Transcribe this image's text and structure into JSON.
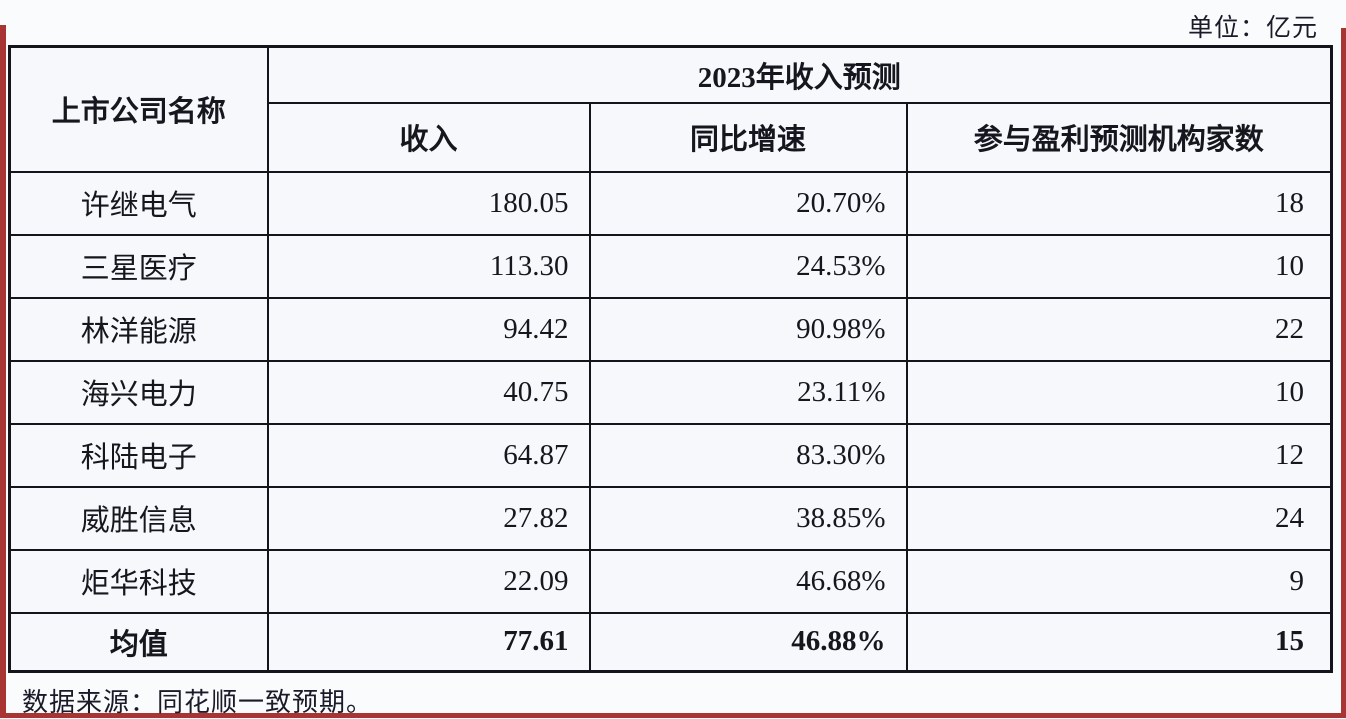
{
  "page": {
    "unit_label": "单位：亿元",
    "source_note": "数据来源：同花顺一致预期。"
  },
  "table": {
    "header": {
      "company_col": "上市公司名称",
      "group_title": "2023年收入预测",
      "sub_columns": [
        "收入",
        "同比增速",
        "参与盈利预测机构家数"
      ]
    },
    "rows": [
      {
        "company": "许继电气",
        "revenue": "180.05",
        "yoy": "20.70%",
        "institutions": "18"
      },
      {
        "company": "三星医疗",
        "revenue": "113.30",
        "yoy": "24.53%",
        "institutions": "10"
      },
      {
        "company": "林洋能源",
        "revenue": "94.42",
        "yoy": "90.98%",
        "institutions": "22"
      },
      {
        "company": "海兴电力",
        "revenue": "40.75",
        "yoy": "23.11%",
        "institutions": "10"
      },
      {
        "company": "科陆电子",
        "revenue": "64.87",
        "yoy": "83.30%",
        "institutions": "12"
      },
      {
        "company": "威胜信息",
        "revenue": "27.82",
        "yoy": "38.85%",
        "institutions": "24"
      },
      {
        "company": "炬华科技",
        "revenue": "22.09",
        "yoy": "46.68%",
        "institutions": "9"
      }
    ],
    "summary_row": {
      "company": "均值",
      "revenue": "77.61",
      "yoy": "46.88%",
      "institutions": "15"
    }
  },
  "colors": {
    "edge_red": "#a93434",
    "border_black": "#14141c",
    "cell_bg": "#f6f8fb",
    "page_bg": "#fafbfd",
    "text": "#16161e"
  },
  "chart_data": {
    "type": "table",
    "title": "2023年收入预测",
    "unit": "亿元",
    "columns": [
      "上市公司名称",
      "收入",
      "同比增速",
      "参与盈利预测机构家数"
    ],
    "rows": [
      [
        "许继电气",
        180.05,
        "20.70%",
        18
      ],
      [
        "三星医疗",
        113.3,
        "24.53%",
        10
      ],
      [
        "林洋能源",
        94.42,
        "90.98%",
        22
      ],
      [
        "海兴电力",
        40.75,
        "23.11%",
        10
      ],
      [
        "科陆电子",
        64.87,
        "83.30%",
        12
      ],
      [
        "威胜信息",
        27.82,
        "38.85%",
        24
      ],
      [
        "炬华科技",
        22.09,
        "46.68%",
        9
      ],
      [
        "均值",
        77.61,
        "46.88%",
        15
      ]
    ],
    "source": "同花顺一致预期"
  }
}
